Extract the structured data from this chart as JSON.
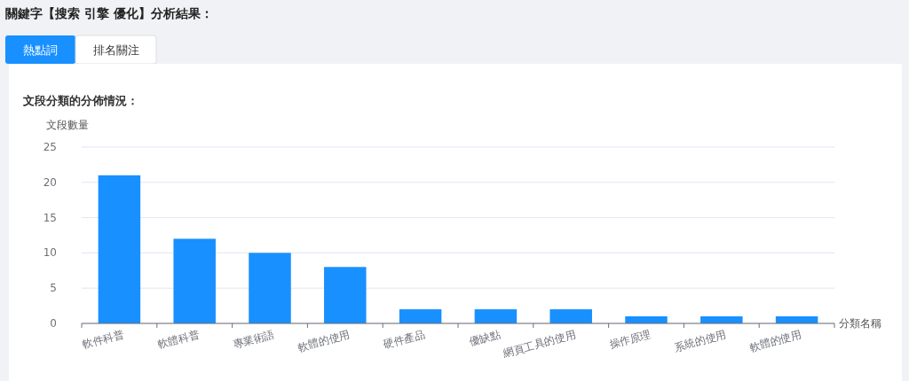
{
  "chart_data": {
    "type": "bar",
    "title": "文段分類的分佈情況：",
    "xlabel": "分類名稱",
    "ylabel": "文段數量",
    "categories": [
      "軟件科普",
      "軟體科普",
      "專業術語",
      "軟體的使用",
      "硬件產品",
      "優缺點",
      "網頁工具的使用",
      "操作原理",
      "系統的使用",
      "軟體的使用"
    ],
    "values": [
      21,
      12,
      10,
      8,
      2,
      2,
      2,
      1,
      1,
      1
    ],
    "color": "#1890ff",
    "ylim": [
      0,
      25
    ],
    "yticks": [
      0,
      5,
      10,
      15,
      20,
      25
    ],
    "grid": "y",
    "annotations": [
      "關鍵字【搜索 引擎 優化】分析結果：",
      "熱點詞",
      "排名關注"
    ]
  }
}
